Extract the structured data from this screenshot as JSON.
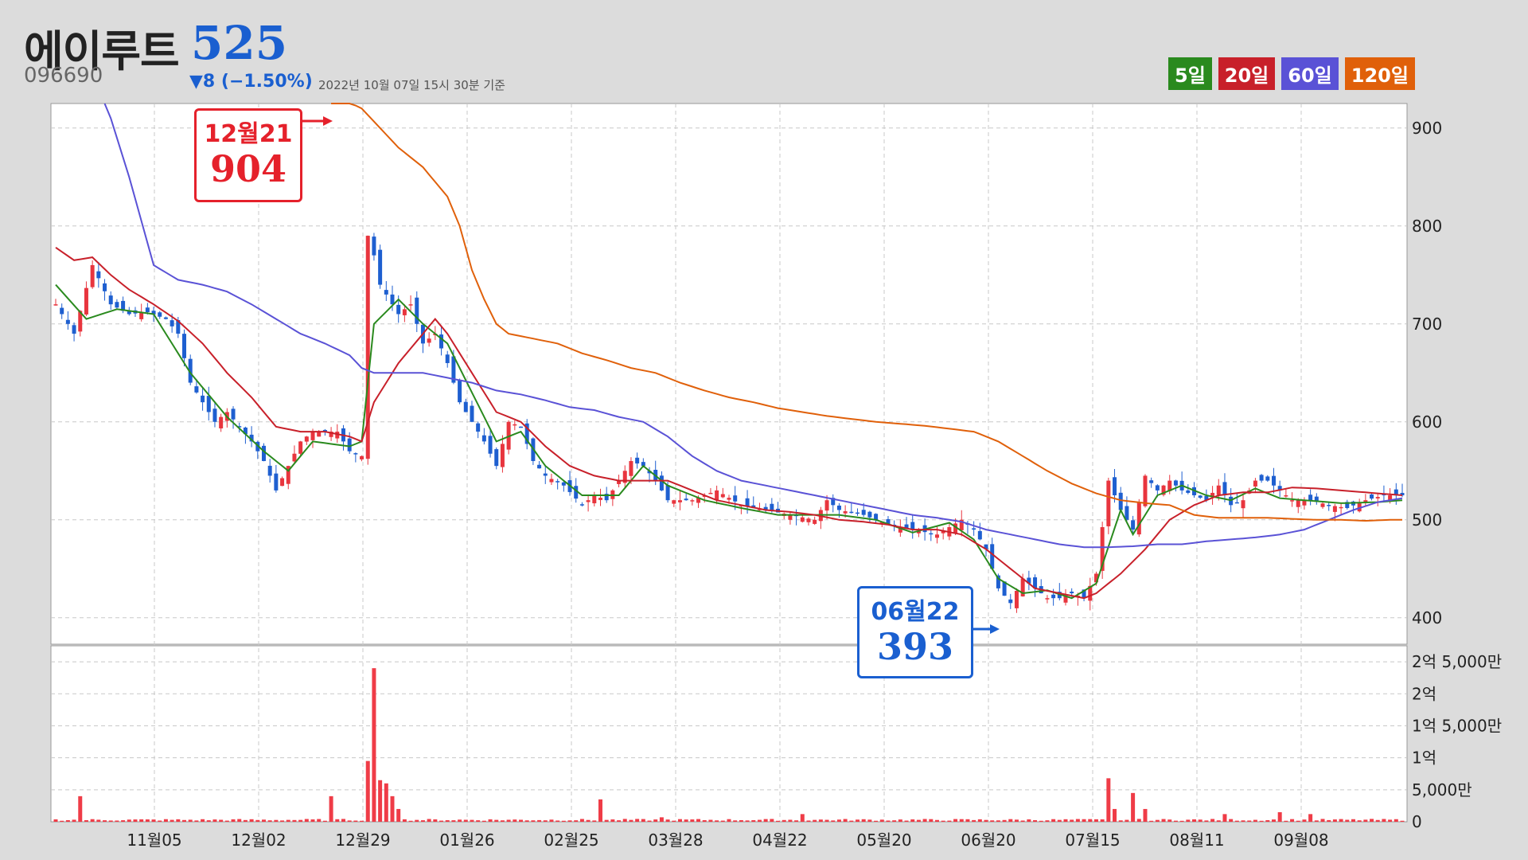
{
  "header": {
    "name": "에이루트",
    "price": "525",
    "code": "096690",
    "change": "▼8 (−1.50%)",
    "asof": "2022년 10월 07일 15시 30분 기준"
  },
  "legend": [
    {
      "label": "5일",
      "color": "#2a8a1e"
    },
    {
      "label": "20일",
      "color": "#c8202a"
    },
    {
      "label": "60일",
      "color": "#5a52d6"
    },
    {
      "label": "120일",
      "color": "#e0600a"
    }
  ],
  "colors": {
    "up": "#e8353e",
    "down": "#1e5fd0",
    "volume": "#ef3c47"
  },
  "callouts": {
    "high": {
      "date": "12월21",
      "value": "904",
      "color": "#e5212b"
    },
    "low": {
      "date": "06월22",
      "value": "393",
      "color": "#1a5fd0"
    }
  },
  "chart_data": {
    "type": "candlestick",
    "x_tick_labels": [
      "11월05",
      "12월02",
      "12월29",
      "01월26",
      "02월25",
      "03월28",
      "04월22",
      "05월20",
      "06월20",
      "07월15",
      "08월11",
      "09월08"
    ],
    "price_axis": {
      "ticks": [
        900,
        800,
        700,
        600,
        500,
        400
      ],
      "ylim": [
        373,
        925
      ]
    },
    "volume_axis": {
      "ticks": [
        "2억 5,000만",
        "2억",
        "1억 5,000만",
        "1억",
        "5,000만",
        "0"
      ],
      "tick_values": [
        250000000,
        200000000,
        150000000,
        100000000,
        50000000,
        0
      ],
      "ylim": [
        0,
        275000000
      ]
    },
    "close_path": [
      [
        0,
        720
      ],
      [
        3,
        690
      ],
      [
        6,
        760
      ],
      [
        9,
        720
      ],
      [
        12,
        710
      ],
      [
        15,
        712
      ],
      [
        18,
        705
      ],
      [
        20,
        690
      ],
      [
        22,
        640
      ],
      [
        24,
        620
      ],
      [
        26,
        600
      ],
      [
        28,
        610
      ],
      [
        30,
        595
      ],
      [
        32,
        580
      ],
      [
        34,
        560
      ],
      [
        36,
        530
      ],
      [
        38,
        555
      ],
      [
        40,
        580
      ],
      [
        42,
        590
      ],
      [
        44,
        590
      ],
      [
        46,
        590
      ],
      [
        48,
        570
      ],
      [
        50,
        565
      ],
      [
        51,
        790
      ],
      [
        52,
        770
      ],
      [
        53,
        740
      ],
      [
        56,
        710
      ],
      [
        58,
        720
      ],
      [
        60,
        680
      ],
      [
        62,
        690
      ],
      [
        64,
        660
      ],
      [
        66,
        620
      ],
      [
        68,
        600
      ],
      [
        70,
        580
      ],
      [
        72,
        555
      ],
      [
        74,
        600
      ],
      [
        76,
        595
      ],
      [
        78,
        560
      ],
      [
        80,
        545
      ],
      [
        83,
        535
      ],
      [
        86,
        515
      ],
      [
        88,
        525
      ],
      [
        90,
        520
      ],
      [
        92,
        540
      ],
      [
        94,
        560
      ],
      [
        96,
        555
      ],
      [
        98,
        540
      ],
      [
        100,
        520
      ],
      [
        104,
        520
      ],
      [
        108,
        530
      ],
      [
        112,
        515
      ],
      [
        116,
        510
      ],
      [
        120,
        505
      ],
      [
        124,
        500
      ],
      [
        126,
        520
      ],
      [
        128,
        510
      ],
      [
        132,
        505
      ],
      [
        136,
        495
      ],
      [
        140,
        490
      ],
      [
        144,
        485
      ],
      [
        148,
        500
      ],
      [
        150,
        490
      ],
      [
        152,
        470
      ],
      [
        154,
        430
      ],
      [
        156,
        415
      ],
      [
        158,
        440
      ],
      [
        160,
        430
      ],
      [
        162,
        420
      ],
      [
        164,
        420
      ],
      [
        166,
        425
      ],
      [
        168,
        420
      ],
      [
        170,
        445
      ],
      [
        172,
        540
      ],
      [
        174,
        510
      ],
      [
        176,
        490
      ],
      [
        178,
        545
      ],
      [
        180,
        530
      ],
      [
        182,
        540
      ],
      [
        184,
        530
      ],
      [
        186,
        525
      ],
      [
        188,
        520
      ],
      [
        190,
        535
      ],
      [
        192,
        515
      ],
      [
        194,
        520
      ],
      [
        196,
        540
      ],
      [
        198,
        540
      ],
      [
        200,
        530
      ],
      [
        202,
        520
      ],
      [
        205,
        520
      ],
      [
        208,
        515
      ],
      [
        211,
        512
      ],
      [
        214,
        520
      ],
      [
        217,
        525
      ],
      [
        220,
        525
      ]
    ],
    "ma_paths": {
      "5일": [
        [
          0,
          740
        ],
        [
          5,
          705
        ],
        [
          10,
          715
        ],
        [
          16,
          710
        ],
        [
          22,
          650
        ],
        [
          28,
          605
        ],
        [
          34,
          570
        ],
        [
          38,
          550
        ],
        [
          42,
          580
        ],
        [
          48,
          575
        ],
        [
          50,
          580
        ],
        [
          52,
          700
        ],
        [
          56,
          725
        ],
        [
          60,
          700
        ],
        [
          64,
          680
        ],
        [
          68,
          630
        ],
        [
          72,
          580
        ],
        [
          76,
          590
        ],
        [
          80,
          555
        ],
        [
          86,
          525
        ],
        [
          92,
          525
        ],
        [
          96,
          555
        ],
        [
          100,
          535
        ],
        [
          106,
          520
        ],
        [
          112,
          512
        ],
        [
          118,
          505
        ],
        [
          124,
          505
        ],
        [
          128,
          505
        ],
        [
          134,
          500
        ],
        [
          140,
          487
        ],
        [
          146,
          497
        ],
        [
          150,
          480
        ],
        [
          154,
          440
        ],
        [
          158,
          425
        ],
        [
          162,
          428
        ],
        [
          166,
          420
        ],
        [
          170,
          435
        ],
        [
          174,
          510
        ],
        [
          176,
          485
        ],
        [
          180,
          525
        ],
        [
          184,
          535
        ],
        [
          188,
          525
        ],
        [
          192,
          520
        ],
        [
          196,
          532
        ],
        [
          200,
          522
        ],
        [
          204,
          520
        ],
        [
          210,
          517
        ],
        [
          216,
          518
        ],
        [
          220,
          520
        ]
      ],
      "20일": [
        [
          0,
          778
        ],
        [
          3,
          765
        ],
        [
          6,
          768
        ],
        [
          9,
          750
        ],
        [
          12,
          735
        ],
        [
          16,
          720
        ],
        [
          20,
          703
        ],
        [
          24,
          680
        ],
        [
          28,
          650
        ],
        [
          32,
          625
        ],
        [
          36,
          595
        ],
        [
          40,
          590
        ],
        [
          44,
          590
        ],
        [
          48,
          585
        ],
        [
          50,
          580
        ],
        [
          52,
          620
        ],
        [
          56,
          660
        ],
        [
          60,
          690
        ],
        [
          62,
          705
        ],
        [
          64,
          690
        ],
        [
          68,
          650
        ],
        [
          72,
          610
        ],
        [
          76,
          600
        ],
        [
          80,
          575
        ],
        [
          84,
          555
        ],
        [
          88,
          545
        ],
        [
          92,
          540
        ],
        [
          96,
          540
        ],
        [
          100,
          540
        ],
        [
          104,
          530
        ],
        [
          108,
          520
        ],
        [
          112,
          515
        ],
        [
          116,
          510
        ],
        [
          120,
          508
        ],
        [
          124,
          505
        ],
        [
          128,
          500
        ],
        [
          132,
          498
        ],
        [
          136,
          495
        ],
        [
          140,
          490
        ],
        [
          144,
          490
        ],
        [
          148,
          485
        ],
        [
          152,
          470
        ],
        [
          156,
          450
        ],
        [
          160,
          430
        ],
        [
          164,
          425
        ],
        [
          168,
          420
        ],
        [
          170,
          425
        ],
        [
          174,
          445
        ],
        [
          178,
          470
        ],
        [
          182,
          500
        ],
        [
          186,
          515
        ],
        [
          190,
          525
        ],
        [
          194,
          528
        ],
        [
          198,
          528
        ],
        [
          202,
          533
        ],
        [
          206,
          532
        ],
        [
          210,
          530
        ],
        [
          214,
          528
        ],
        [
          218,
          526
        ],
        [
          220,
          525
        ]
      ],
      "60일": [
        [
          8,
          930
        ],
        [
          12,
          850
        ],
        [
          16,
          760
        ],
        [
          20,
          745
        ],
        [
          24,
          740
        ],
        [
          28,
          733
        ],
        [
          32,
          720
        ],
        [
          36,
          705
        ],
        [
          40,
          690
        ],
        [
          44,
          680
        ],
        [
          48,
          668
        ],
        [
          50,
          655
        ],
        [
          52,
          650
        ],
        [
          56,
          650
        ],
        [
          60,
          650
        ],
        [
          64,
          645
        ],
        [
          68,
          640
        ],
        [
          72,
          632
        ],
        [
          76,
          628
        ],
        [
          80,
          622
        ],
        [
          84,
          615
        ],
        [
          88,
          612
        ],
        [
          92,
          605
        ],
        [
          96,
          600
        ],
        [
          100,
          585
        ],
        [
          104,
          565
        ],
        [
          108,
          550
        ],
        [
          112,
          540
        ],
        [
          116,
          535
        ],
        [
          120,
          530
        ],
        [
          124,
          525
        ],
        [
          128,
          520
        ],
        [
          132,
          515
        ],
        [
          136,
          510
        ],
        [
          140,
          505
        ],
        [
          144,
          502
        ],
        [
          148,
          498
        ],
        [
          152,
          490
        ],
        [
          156,
          485
        ],
        [
          160,
          480
        ],
        [
          164,
          475
        ],
        [
          168,
          472
        ],
        [
          172,
          472
        ],
        [
          176,
          473
        ],
        [
          180,
          475
        ],
        [
          184,
          475
        ],
        [
          188,
          478
        ],
        [
          192,
          480
        ],
        [
          196,
          482
        ],
        [
          200,
          485
        ],
        [
          204,
          490
        ],
        [
          208,
          500
        ],
        [
          212,
          510
        ],
        [
          216,
          518
        ],
        [
          220,
          522
        ]
      ],
      "120일": [
        [
          45,
          935
        ],
        [
          50,
          920
        ],
        [
          56,
          880
        ],
        [
          60,
          860
        ],
        [
          64,
          830
        ],
        [
          66,
          800
        ],
        [
          68,
          755
        ],
        [
          70,
          725
        ],
        [
          72,
          700
        ],
        [
          74,
          690
        ],
        [
          78,
          685
        ],
        [
          82,
          680
        ],
        [
          86,
          670
        ],
        [
          90,
          663
        ],
        [
          94,
          655
        ],
        [
          98,
          650
        ],
        [
          102,
          640
        ],
        [
          106,
          632
        ],
        [
          110,
          625
        ],
        [
          114,
          620
        ],
        [
          118,
          614
        ],
        [
          122,
          610
        ],
        [
          126,
          606
        ],
        [
          130,
          603
        ],
        [
          134,
          600
        ],
        [
          138,
          598
        ],
        [
          142,
          596
        ],
        [
          146,
          593
        ],
        [
          150,
          590
        ],
        [
          154,
          580
        ],
        [
          158,
          565
        ],
        [
          162,
          550
        ],
        [
          166,
          537
        ],
        [
          170,
          527
        ],
        [
          174,
          520
        ],
        [
          178,
          517
        ],
        [
          182,
          515
        ],
        [
          186,
          505
        ],
        [
          190,
          502
        ],
        [
          194,
          502
        ],
        [
          198,
          502
        ],
        [
          202,
          501
        ],
        [
          206,
          500
        ],
        [
          210,
          500
        ],
        [
          214,
          499
        ],
        [
          218,
          500
        ],
        [
          220,
          500
        ]
      ]
    },
    "volume_spikes": [
      [
        4,
        40000000
      ],
      [
        45,
        40000000
      ],
      [
        51,
        95000000
      ],
      [
        52,
        240000000
      ],
      [
        53,
        65000000
      ],
      [
        54,
        60000000
      ],
      [
        55,
        40000000
      ],
      [
        56,
        20000000
      ],
      [
        89,
        35000000
      ],
      [
        99,
        7000000
      ],
      [
        122,
        12000000
      ],
      [
        172,
        68000000
      ],
      [
        173,
        20000000
      ],
      [
        176,
        45000000
      ],
      [
        178,
        20000000
      ],
      [
        191,
        12000000
      ],
      [
        200,
        15000000
      ],
      [
        205,
        12000000
      ]
    ]
  }
}
